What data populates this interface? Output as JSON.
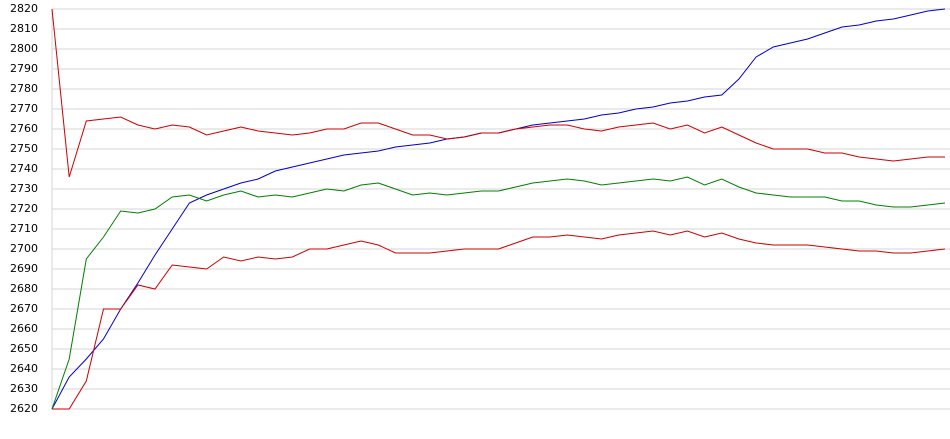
{
  "chart_data": {
    "type": "line",
    "categories": [
      null,
      null,
      null,
      null,
      null,
      null,
      null,
      null,
      null,
      null,
      null,
      null,
      null,
      null,
      null,
      null,
      null,
      null,
      null,
      null,
      null,
      null,
      null,
      null,
      null,
      null,
      null,
      null,
      null,
      null,
      null,
      null,
      null,
      null,
      null,
      null,
      null,
      null,
      null,
      null,
      null,
      null,
      null,
      null,
      null,
      null,
      null,
      null,
      null,
      null,
      null,
      null,
      null
    ],
    "series": [
      {
        "color": "#0000cc",
        "values": [
          2620,
          2636,
          2645,
          2655,
          2670,
          2683,
          2697,
          2710,
          2723,
          2727,
          2730,
          2733,
          2735,
          2739,
          2741,
          2743,
          2745,
          2747,
          2748,
          2749,
          2751,
          2752,
          2753,
          2755,
          2756,
          2758,
          2758,
          2760,
          2762,
          2763,
          2764,
          2765,
          2767,
          2768,
          2770,
          2771,
          2773,
          2774,
          2776,
          2777,
          2785,
          2796,
          2801,
          2803,
          2805,
          2808,
          2811,
          2812,
          2814,
          2815,
          2817,
          2819,
          2820
        ]
      },
      {
        "color": "#cc0000",
        "values": [
          2820,
          2736,
          2764,
          2765,
          2766,
          2762,
          2760,
          2762,
          2761,
          2757,
          2759,
          2761,
          2759,
          2758,
          2757,
          2758,
          2760,
          2760,
          2763,
          2763,
          2760,
          2757,
          2757,
          2755,
          2756,
          2758,
          2758,
          2760,
          2761,
          2762,
          2762,
          2760,
          2759,
          2761,
          2762,
          2763,
          2760,
          2762,
          2758,
          2761,
          2757,
          2753,
          2750,
          2750,
          2750,
          2748,
          2748,
          2746,
          2745,
          2744,
          2745,
          2746,
          2746
        ]
      },
      {
        "color": "#008000",
        "values": [
          2620,
          2645,
          2695,
          2706,
          2719,
          2718,
          2720,
          2726,
          2727,
          2724,
          2727,
          2729,
          2726,
          2727,
          2726,
          2728,
          2730,
          2729,
          2732,
          2733,
          2730,
          2727,
          2728,
          2727,
          2728,
          2729,
          2729,
          2731,
          2733,
          2734,
          2735,
          2734,
          2732,
          2733,
          2734,
          2735,
          2734,
          2736,
          2732,
          2735,
          2731,
          2728,
          2727,
          2726,
          2726,
          2726,
          2724,
          2724,
          2722,
          2721,
          2721,
          2722,
          2723
        ]
      },
      {
        "color": "#cc0000",
        "values": [
          2620,
          2620,
          2634,
          2670,
          2670,
          2682,
          2680,
          2692,
          2691,
          2690,
          2696,
          2694,
          2696,
          2695,
          2696,
          2700,
          2700,
          2702,
          2704,
          2702,
          2698,
          2698,
          2698,
          2699,
          2700,
          2700,
          2700,
          2703,
          2706,
          2706,
          2707,
          2706,
          2705,
          2707,
          2708,
          2709,
          2707,
          2709,
          2706,
          2708,
          2705,
          2703,
          2702,
          2702,
          2702,
          2701,
          2700,
          2699,
          2699,
          2698,
          2698,
          2699,
          2700
        ]
      }
    ],
    "ylim": [
      2620,
      2820
    ],
    "yticks": [
      2620,
      2630,
      2640,
      2650,
      2660,
      2670,
      2680,
      2690,
      2700,
      2710,
      2720,
      2730,
      2740,
      2750,
      2760,
      2770,
      2780,
      2790,
      2800,
      2810,
      2820
    ],
    "grid": true
  }
}
